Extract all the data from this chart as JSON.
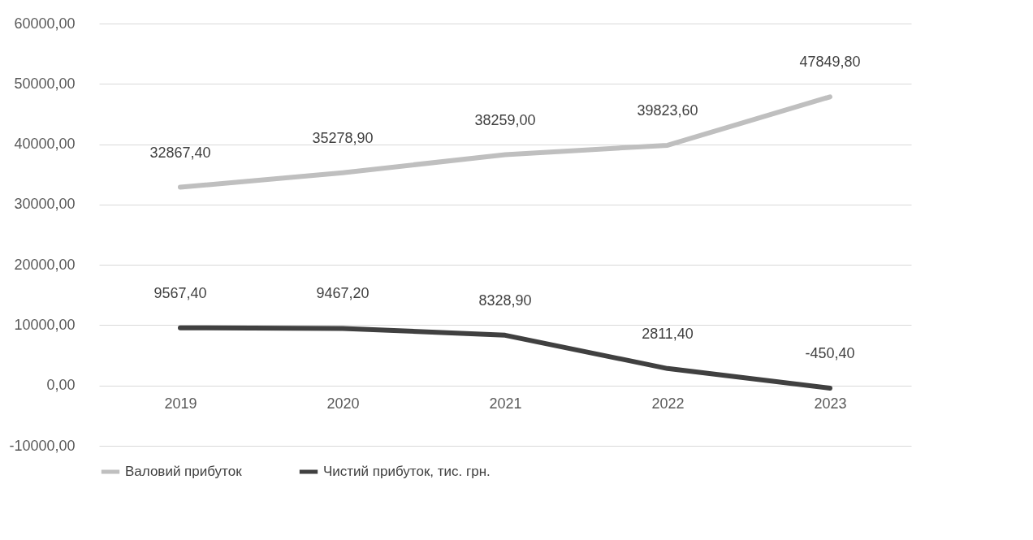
{
  "chart_data": {
    "type": "line",
    "categories": [
      "2019",
      "2020",
      "2021",
      "2022",
      "2023"
    ],
    "series": [
      {
        "name": "Валовий прибуток",
        "color": "#bfbfbf",
        "values": [
          32867.4,
          35278.9,
          38259.0,
          39823.6,
          47849.8
        ],
        "value_labels": [
          "32867,40",
          "35278,90",
          "38259,00",
          "39823,60",
          "47849,80"
        ]
      },
      {
        "name": "Чистий прибуток, тис. грн.",
        "color": "#404040",
        "values": [
          9567.4,
          9467.2,
          8328.9,
          2811.4,
          -450.4
        ],
        "value_labels": [
          "9567,40",
          "9467,20",
          "8328,90",
          "2811,40",
          "-450,40"
        ]
      }
    ],
    "ylim": [
      -10000,
      60000
    ],
    "yticks": [
      {
        "value": -10000,
        "label": "-10000,00"
      },
      {
        "value": 0,
        "label": "0,00"
      },
      {
        "value": 10000,
        "label": "10000,00"
      },
      {
        "value": 20000,
        "label": "20000,00"
      },
      {
        "value": 30000,
        "label": "30000,00"
      },
      {
        "value": 40000,
        "label": "40000,00"
      },
      {
        "value": 50000,
        "label": "50000,00"
      },
      {
        "value": 60000,
        "label": "60000,00"
      }
    ],
    "grid": "y",
    "legend": "bottom",
    "marker": "none",
    "line_style": "solid"
  }
}
